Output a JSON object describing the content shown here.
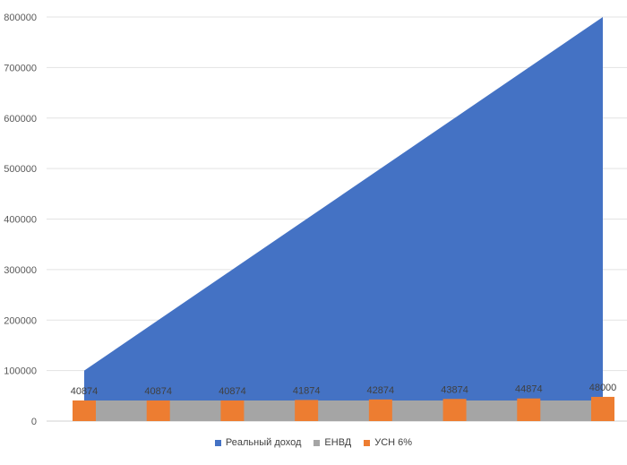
{
  "chart_data": {
    "type": "area",
    "y_ticks": [
      "0",
      "100000",
      "200000",
      "300000",
      "400000",
      "500000",
      "600000",
      "700000",
      "800000"
    ],
    "ylim": [
      0,
      800000
    ],
    "grid": true,
    "legend_position": "bottom",
    "points": 8,
    "series": [
      {
        "name": "Реальный доход",
        "type": "area",
        "color": "#4472C4",
        "values": [
          100000,
          200000,
          300000,
          400000,
          500000,
          600000,
          700000,
          800000
        ]
      },
      {
        "name": "ЕНВД",
        "type": "area",
        "color": "#A5A5A5",
        "values": [
          40874,
          40874,
          40874,
          40874,
          40874,
          40874,
          40874,
          40874
        ]
      },
      {
        "name": "УСН 6%",
        "type": "bar",
        "color": "#ED7D31",
        "values": [
          40874,
          40874,
          40874,
          41874,
          42874,
          43874,
          44874,
          48000
        ],
        "labels": [
          "40874",
          "40874",
          "40874",
          "41874",
          "42874",
          "43874",
          "44874",
          "48000"
        ]
      }
    ]
  }
}
